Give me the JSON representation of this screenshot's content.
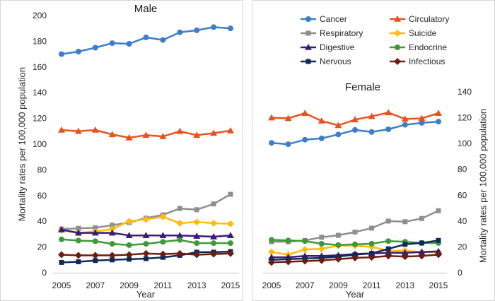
{
  "chart_data": [
    {
      "type": "line",
      "title": "Male",
      "xlabel": "Year",
      "ylabel": "Mortality rates per 100,000 population",
      "yaxis_side": "left",
      "grid": false,
      "x": [
        2005,
        2006,
        2007,
        2008,
        2009,
        2010,
        2011,
        2012,
        2013,
        2014,
        2015
      ],
      "xticks": [
        2005,
        2007,
        2009,
        2011,
        2013,
        2015
      ],
      "ylim": [
        0,
        200
      ],
      "yticks": [
        0,
        20,
        40,
        60,
        80,
        100,
        120,
        140,
        160,
        180,
        200
      ],
      "series": [
        {
          "name": "Cancer",
          "color": "#3D7DCA",
          "marker": "circle",
          "values": [
            170,
            172,
            175,
            178.5,
            178,
            183,
            181,
            187,
            188.5,
            191,
            190
          ]
        },
        {
          "name": "Circulatory",
          "color": "#E8521C",
          "marker": "triangle",
          "values": [
            111,
            110,
            111,
            107.5,
            105,
            107,
            106,
            110,
            107,
            108.5,
            110.5
          ]
        },
        {
          "name": "Respiratory",
          "color": "#8E8E8E",
          "marker": "square",
          "values": [
            34,
            34.5,
            35,
            37,
            39,
            42.5,
            45,
            50,
            49,
            53.5,
            61
          ]
        },
        {
          "name": "Suicide",
          "color": "#FFBC0A",
          "marker": "diamond",
          "values": [
            33,
            31,
            32,
            34,
            40,
            41.5,
            43.5,
            38.5,
            39.5,
            38.5,
            38
          ]
        },
        {
          "name": "Digestive",
          "color": "#3C1A79",
          "marker": "triangle",
          "values": [
            33.5,
            31,
            31,
            31,
            29,
            29,
            29,
            29,
            28.5,
            28,
            29
          ]
        },
        {
          "name": "Endocrine",
          "color": "#3D9A36",
          "marker": "circle",
          "values": [
            26,
            25,
            24.5,
            22.5,
            21.5,
            22.5,
            24,
            25.5,
            23,
            23,
            23
          ]
        },
        {
          "name": "Nervous",
          "color": "#0E2A59",
          "marker": "square",
          "values": [
            8,
            8.5,
            9.5,
            10,
            10.5,
            11,
            12,
            13.5,
            16,
            16,
            16.5
          ]
        },
        {
          "name": "Infectious",
          "color": "#6B1D12",
          "marker": "diamond",
          "values": [
            14,
            13.5,
            13.5,
            13.5,
            14,
            15,
            14.5,
            15,
            14,
            14.5,
            15
          ]
        }
      ]
    },
    {
      "type": "line",
      "title": "Female",
      "xlabel": "Year",
      "ylabel": "Mortality rates per 100,000 population",
      "yaxis_side": "right",
      "grid": false,
      "legend_position": "top",
      "x": [
        2005,
        2006,
        2007,
        2008,
        2009,
        2010,
        2011,
        2012,
        2013,
        2014,
        2015
      ],
      "xticks": [
        2005,
        2007,
        2009,
        2011,
        2013,
        2015
      ],
      "ylim": [
        0,
        140
      ],
      "yticks": [
        0,
        20,
        40,
        60,
        80,
        100,
        120,
        140
      ],
      "series": [
        {
          "name": "Cancer",
          "color": "#3D7DCA",
          "marker": "circle",
          "values": [
            100.5,
            99.5,
            103,
            104,
            107,
            110.5,
            109,
            111,
            114.5,
            116,
            117
          ]
        },
        {
          "name": "Circulatory",
          "color": "#E8521C",
          "marker": "triangle",
          "values": [
            120,
            119.5,
            123.5,
            117.5,
            114,
            118.5,
            121,
            124,
            119,
            119.5,
            123.5
          ]
        },
        {
          "name": "Respiratory",
          "color": "#8E8E8E",
          "marker": "square",
          "values": [
            24,
            24,
            25,
            27.5,
            29,
            31.5,
            34.5,
            40,
            39.5,
            42,
            48
          ]
        },
        {
          "name": "Suicide",
          "color": "#FFBC0A",
          "marker": "diamond",
          "values": [
            16,
            14,
            18,
            18.5,
            21,
            21,
            20,
            17,
            17,
            16,
            16
          ]
        },
        {
          "name": "Digestive",
          "color": "#3C1A79",
          "marker": "triangle",
          "values": [
            12,
            12,
            13,
            13,
            13.5,
            14.5,
            15,
            15.5,
            15.5,
            16,
            16.5
          ]
        },
        {
          "name": "Endocrine",
          "color": "#3D9A36",
          "marker": "circle",
          "values": [
            25.5,
            25,
            24.5,
            22.5,
            21.5,
            22,
            22.5,
            24.5,
            24,
            23,
            23
          ]
        },
        {
          "name": "Nervous",
          "color": "#0E2A59",
          "marker": "square",
          "values": [
            10,
            10.5,
            11,
            11.5,
            12.5,
            14,
            15,
            18.5,
            22,
            23,
            25
          ]
        },
        {
          "name": "Infectious",
          "color": "#6B1D12",
          "marker": "diamond",
          "values": [
            8,
            8.5,
            9,
            9.5,
            10.5,
            11.5,
            12,
            13,
            12.5,
            13,
            14
          ]
        }
      ]
    }
  ]
}
